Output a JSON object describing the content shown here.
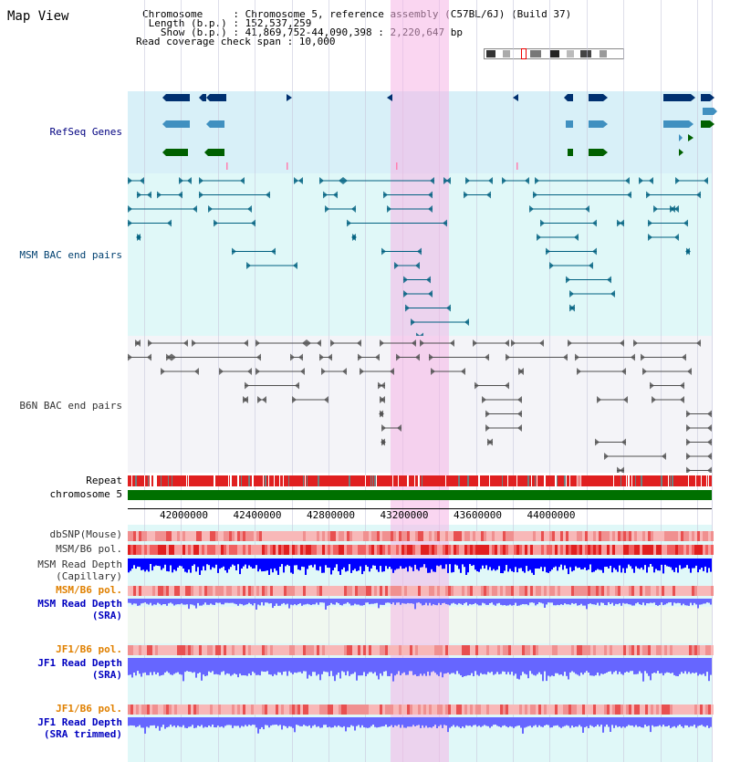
{
  "title": "Map View",
  "header": {
    "chromosome_label": "Chromosome     : Chromosome 5, reference assembly (C57BL/6J) (Build 37)",
    "length_label": " Length (b.p.) : 152,537,259",
    "show_label": "   Show (b.p.) : 41,869,752-44,090,398 : 2,220,647 bp",
    "coverage_label": "Read coverage check span : 10,000"
  },
  "tracks": {
    "refseq": "RefSeq Genes",
    "msm_bac": "MSM BAC end pairs",
    "b6n_bac": "B6N BAC end pairs",
    "repeat": "Repeat",
    "chromosome": "chromosome 5",
    "dbsnp": "dbSNP(Mouse)",
    "msm_b6_pol": "MSM/B6 pol.",
    "msm_depth_cap_1": "MSM Read Depth",
    "msm_depth_cap_2": "(Capillary)",
    "msm_b6_pol_sra": "MSM/B6 pol.",
    "msm_depth_sra_1": "MSM Read Depth",
    "msm_depth_sra_2": "(SRA)",
    "jf1_b6_pol": "JF1/B6 pol.",
    "jf1_depth_1": "JF1 Read Depth",
    "jf1_depth_2": "(SRA)",
    "jf1_b6_pol_trim": "JF1/B6 pol.",
    "jf1_depth_trim_1": "JF1 Read Depth",
    "jf1_depth_trim_2": "(SRA trimmed)"
  },
  "axis": {
    "ticks": [
      "42000000",
      "42400000",
      "42800000",
      "43200000",
      "43600000",
      "44000000"
    ]
  },
  "colors": {
    "highlight": "#f8d0f0",
    "refseq_bg": "#d8f0f8",
    "msm_bg": "#e0f8f8",
    "b6n_bg": "#f4f4f8",
    "depth_bg": "#e0f8f8",
    "sra_bg": "#f0f8f0",
    "gene_navy": "#003070",
    "gene_teal": "#4090c0",
    "gene_green": "#006000",
    "msm_line": "#006080",
    "b6n_line": "#505050",
    "depth_blue": "#0000ff",
    "depth_light": "#6666ff",
    "repeat_red": "#e02020",
    "chrom_green": "#007000"
  }
}
